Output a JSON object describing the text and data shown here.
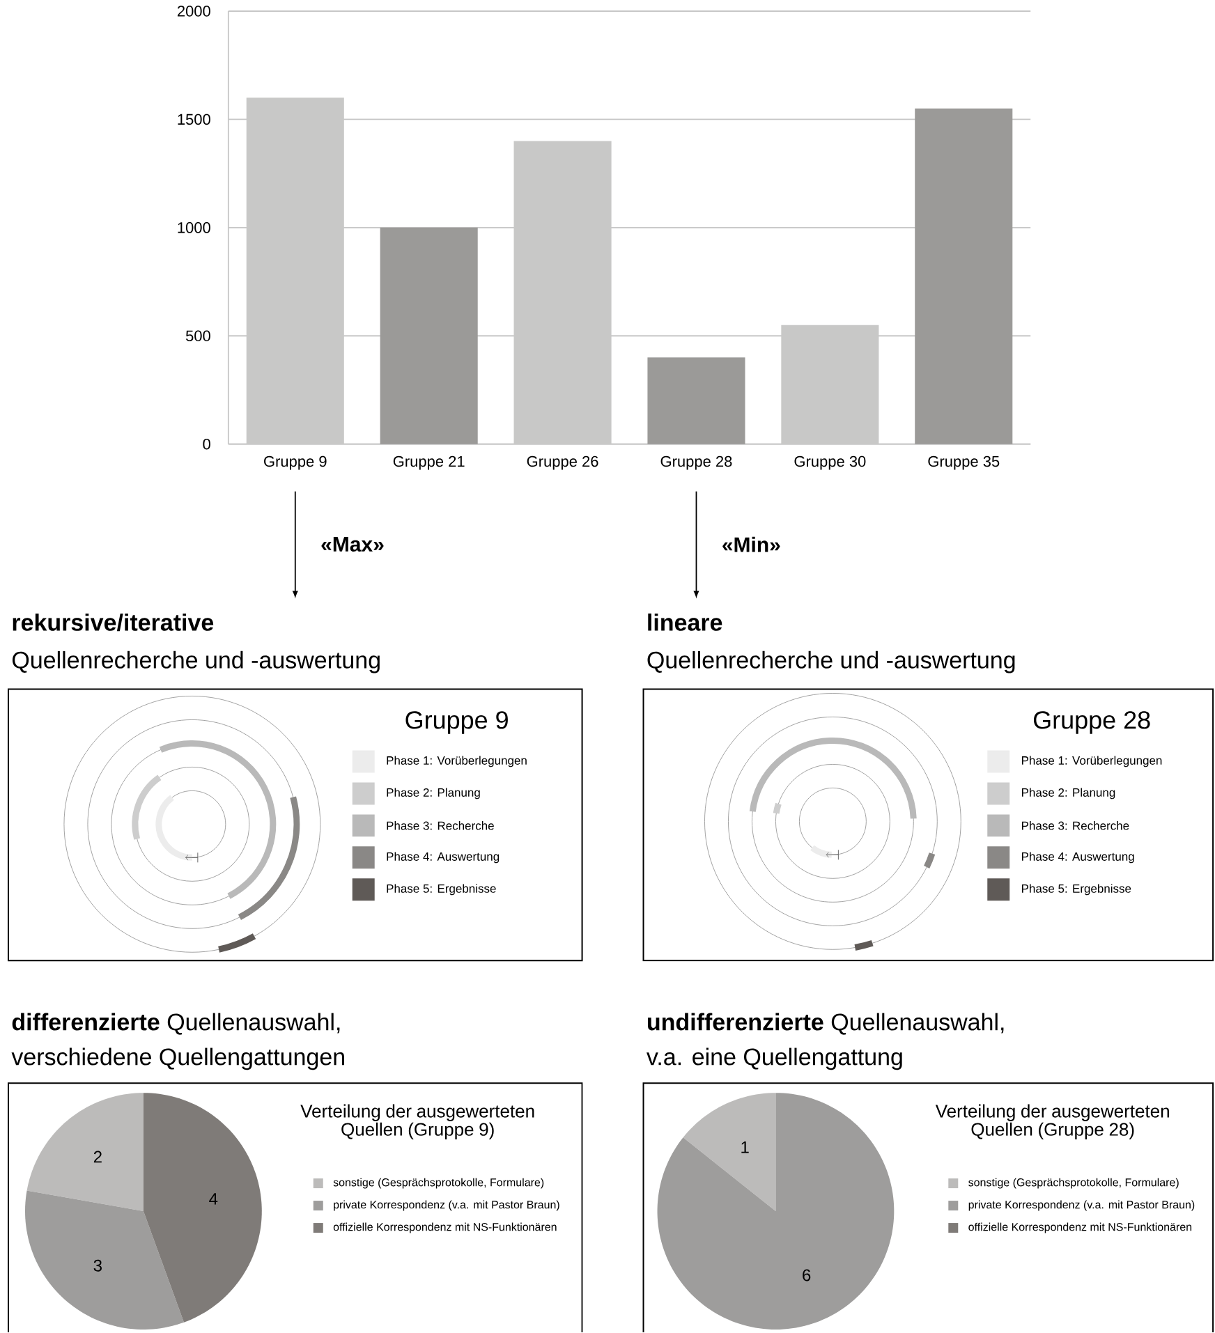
{
  "chart_data": [
    {
      "type": "bar",
      "categories": [
        "Gruppe 9",
        "Gruppe 21",
        "Gruppe 26",
        "Gruppe 28",
        "Gruppe 30",
        "Gruppe 35"
      ],
      "values": [
        1600,
        1000,
        1400,
        400,
        550,
        1550
      ],
      "colors": [
        "#c8c8c7",
        "#9b9a98",
        "#c8c8c7",
        "#9b9a98",
        "#c8c8c7",
        "#9b9a98"
      ],
      "ylim": [
        0,
        2000
      ],
      "yticks": [
        0,
        500,
        1000,
        1500,
        2000
      ],
      "grid": "y",
      "annotations": [
        "«Max»",
        "«Min»"
      ]
    },
    {
      "type": "other",
      "title": "**rekursive/iterative**",
      "subtitle": "Quellenrecherche und -auswertung",
      "legend_title": "Gruppe 9",
      "categories": [
        "Phase 1: Vorüberlegungen",
        "Phase 2: Planung",
        "Phase 3: Recherche",
        "Phase 4: Auswertung",
        "Phase 5: Ergebnisse"
      ],
      "colors": [
        "#ececec",
        "#cdcdcd",
        "#b9b9b9",
        "#8a8886",
        "#5f5a57"
      ]
    },
    {
      "type": "other",
      "title": "**lineare**",
      "subtitle": "Quellenrecherche und -auswertung",
      "legend_title": "Gruppe 28",
      "categories": [
        "Phase 1: Vorüberlegungen",
        "Phase 2: Planung",
        "Phase 3: Recherche",
        "Phase 4: Auswertung",
        "Phase 5: Ergebnisse"
      ],
      "colors": [
        "#ececec",
        "#cdcdcd",
        "#b9b9b9",
        "#8a8886",
        "#5f5a57"
      ]
    },
    {
      "type": "pie",
      "title": "**differenzierte** Quellenauswahl,",
      "subtitle": "verschiedene Quellengattungen",
      "legend_title": "Verteilung der ausgewerteten Quellen (Gruppe 9)",
      "categories": [
        "sonstige (Gesprächsprotokolle, Formulare)",
        "private Korrespondenz (v.a. mit Pastor Braun)",
        "offizielle Korrespondenz mit NS-Funktionären"
      ],
      "values": [
        2,
        3,
        4
      ],
      "colors": [
        "#bcbbba",
        "#9e9d9c",
        "#7f7b78"
      ],
      "data_labels": true,
      "legend": "right"
    },
    {
      "type": "pie",
      "title": "**undifferenzierte** Quellenauswahl,",
      "subtitle": "v.a. eine Quellengattung",
      "legend_title": "Verteilung der ausgewerteten Quellen (Gruppe 28)",
      "categories": [
        "sonstige (Gesprächsprotokolle, Formulare)",
        "private Korrespondenz (v.a. mit Pastor Braun)",
        "offizielle Korrespondenz mit NS-Funktionären"
      ],
      "values": [
        1,
        6,
        0
      ],
      "colors": [
        "#bcbbba",
        "#9e9d9c",
        "#7f7b78"
      ],
      "value_labels": [
        "1",
        "6",
        null
      ],
      "legend": "right"
    }
  ]
}
